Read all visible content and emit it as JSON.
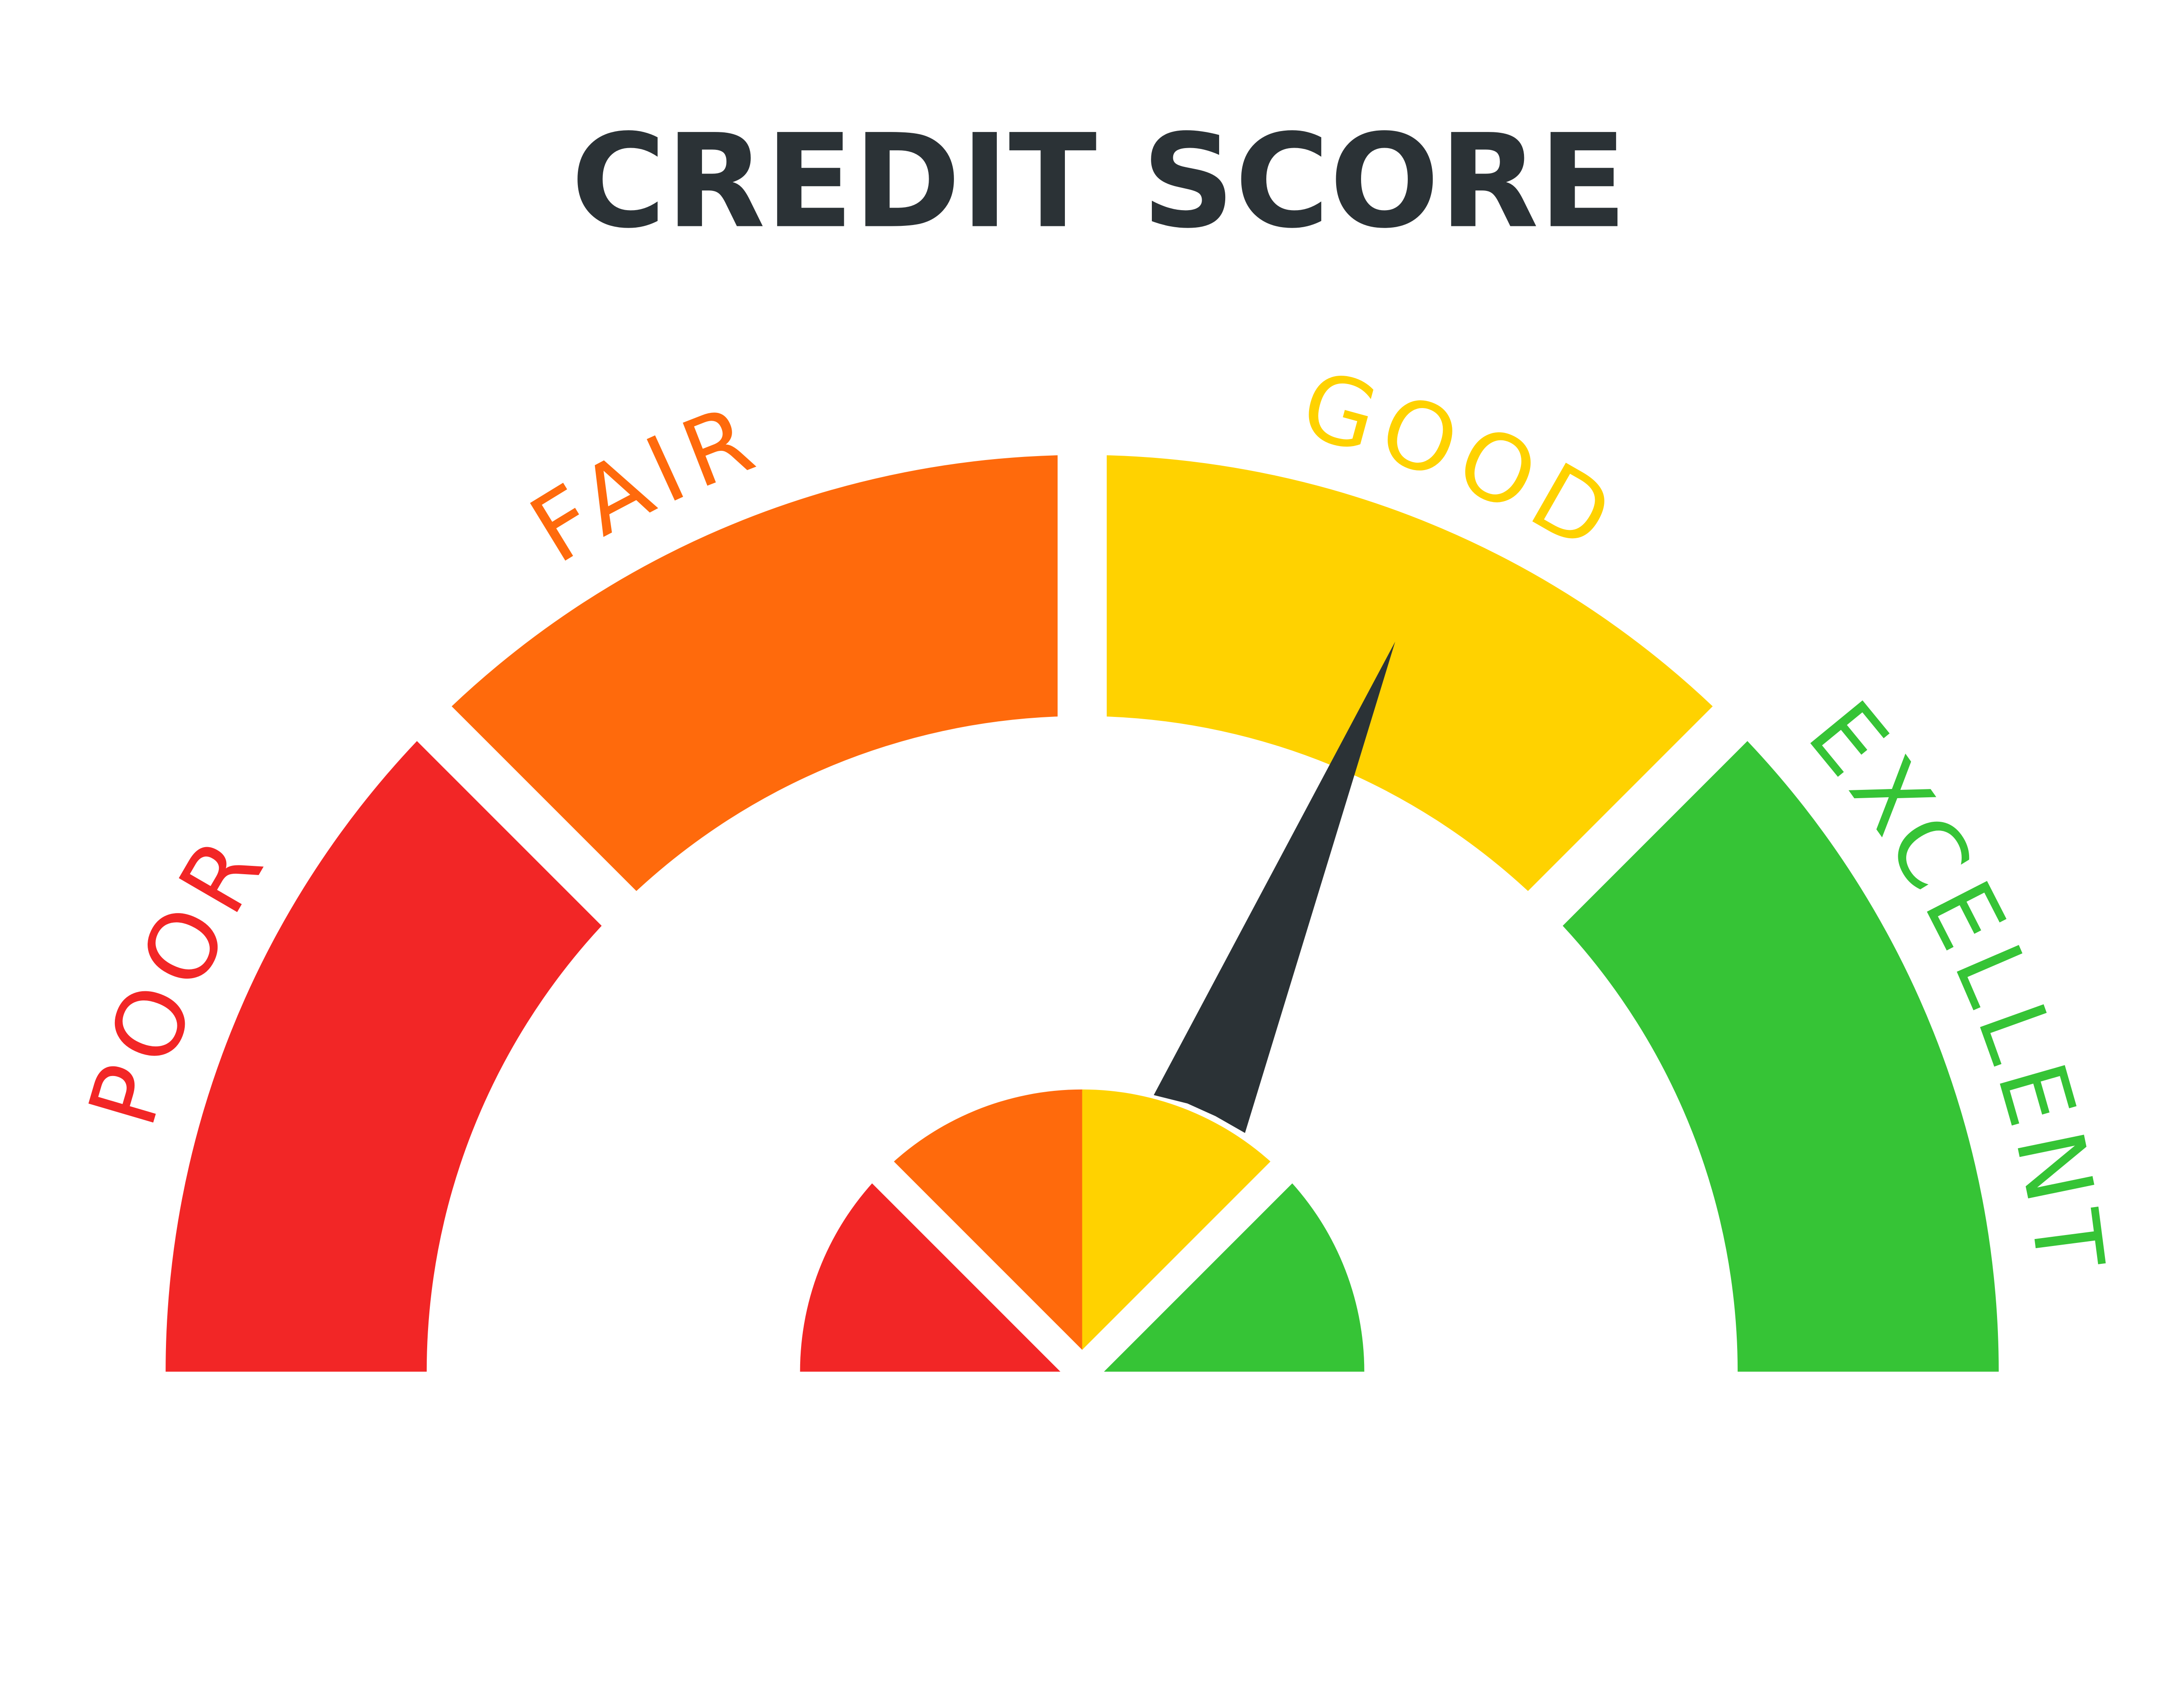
{
  "title": "CREDIT SCORE",
  "segments": [
    {
      "label": "POOR",
      "color": "#f22626"
    },
    {
      "label": "FAIR",
      "color": "#ff6a0c"
    },
    {
      "label": "GOOD",
      "color": "#ffd200"
    },
    {
      "label": "EXCELLENT",
      "color": "#36c436"
    }
  ],
  "needle": {
    "color": "#2b3236",
    "pointing_to": "GOOD"
  }
}
